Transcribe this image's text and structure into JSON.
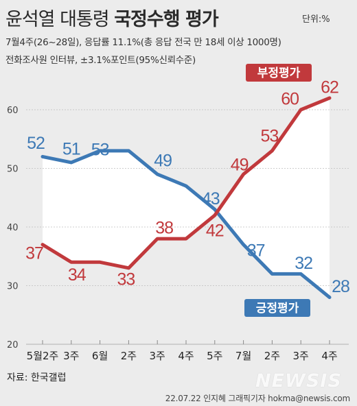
{
  "header": {
    "title_regular": "윤석열 대통령",
    "title_bold": "국정수행 평가",
    "unit": "단위:%",
    "subtitle_line1": "7월4주(26~28일), 응답률 11.1%(총 응답 전국 만 18세 이상 1000명)",
    "subtitle_line2": "전화조사원 인터뷰, ±3.1%포인트(95%신뢰수준)"
  },
  "footer": {
    "source": "자료: 한국갤럽",
    "credit": "22.07.22 인지혜 그래픽기자 hokma@newsis.com",
    "watermark": "NEWSIS"
  },
  "colors": {
    "background": "#ececec",
    "plot_band": "#ffffff",
    "negative": "#c1393c",
    "positive": "#3d79b5",
    "grid": "#bdbdbd"
  },
  "chart_data": {
    "type": "line",
    "categories": [
      "5월2주",
      "3주",
      "6월",
      "2주",
      "3주",
      "4주",
      "5주",
      "7월",
      "2주",
      "3주",
      "4주"
    ],
    "series": [
      {
        "name": "긍정평가",
        "values": [
          52,
          51,
          53,
          53,
          49,
          47,
          43,
          37,
          32,
          32,
          28
        ],
        "labels": [
          "52",
          "51",
          "53",
          "",
          "49",
          "",
          "43",
          "37",
          "",
          "32",
          "28"
        ]
      },
      {
        "name": "부정평가",
        "values": [
          37,
          34,
          34,
          33,
          38,
          38,
          42,
          49,
          53,
          60,
          62
        ],
        "labels": [
          "37",
          "34",
          "",
          "33",
          "38",
          "",
          "42",
          "49",
          "53",
          "60",
          "62"
        ]
      }
    ],
    "ylim": [
      20,
      60
    ],
    "yticks": [
      20,
      30,
      40,
      50,
      60
    ],
    "grid": true
  }
}
